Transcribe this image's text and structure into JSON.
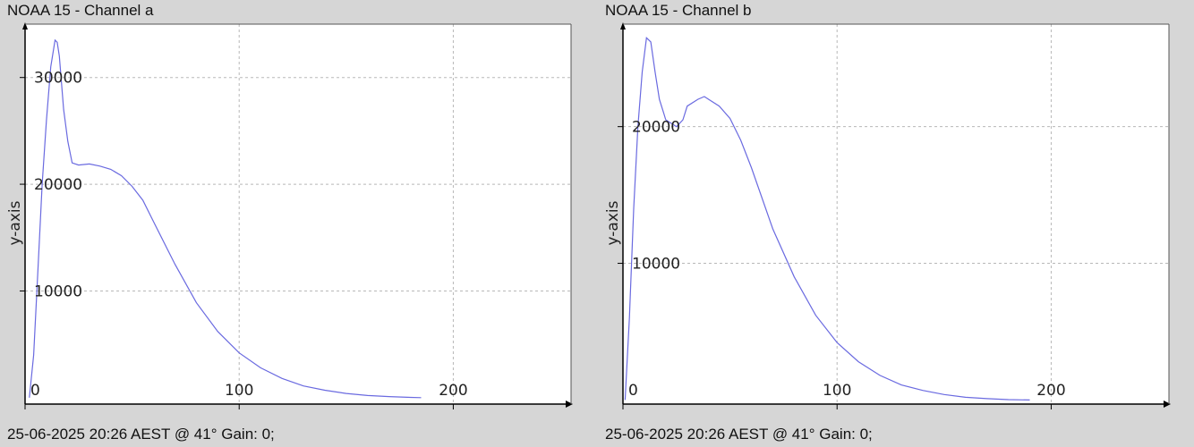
{
  "charts": [
    {
      "title": "NOAA 15 - Channel a",
      "footer": "25-06-2025 20:26 AEST @ 41° Gain: 0;"
    },
    {
      "title": "NOAA 15 - Channel b",
      "footer": "25-06-2025 20:26 AEST @ 41° Gain: 0;"
    }
  ],
  "colors": {
    "background": "#d6d6d6",
    "plot_area": "#ffffff",
    "line": "#6a6ae0",
    "grid": "#b8b8b8",
    "axis": "#000000"
  },
  "chart_data": [
    {
      "type": "line",
      "title": "NOAA 15 - Channel a",
      "xlabel": "",
      "ylabel": "y-axis",
      "xlim": [
        0,
        255
      ],
      "ylim": [
        -600,
        35000
      ],
      "x_ticks": [
        0,
        100,
        200
      ],
      "y_ticks": [
        10000,
        20000,
        30000
      ],
      "grid": true,
      "series": [
        {
          "x": [
            2,
            4,
            6,
            8,
            10,
            12,
            14,
            15,
            16,
            18,
            20,
            22,
            25,
            30,
            35,
            40,
            45,
            50,
            55,
            60,
            70,
            80,
            90,
            100,
            110,
            120,
            130,
            140,
            150,
            160,
            170,
            180,
            185
          ],
          "y": [
            0,
            4000,
            12000,
            20000,
            26000,
            31000,
            33500,
            33300,
            32000,
            27000,
            24000,
            22000,
            21800,
            21900,
            21700,
            21400,
            20800,
            19800,
            18500,
            16500,
            12500,
            8900,
            6200,
            4200,
            2800,
            1800,
            1100,
            700,
            400,
            200,
            100,
            30,
            0
          ]
        }
      ]
    },
    {
      "type": "line",
      "title": "NOAA 15 - Channel b",
      "xlabel": "",
      "ylabel": "y-axis",
      "xlim": [
        0,
        255
      ],
      "ylim": [
        -300,
        27500
      ],
      "x_ticks": [
        0,
        100,
        200
      ],
      "y_ticks": [
        10000,
        20000
      ],
      "grid": true,
      "series": [
        {
          "x": [
            1,
            3,
            5,
            7,
            9,
            11,
            13,
            15,
            17,
            19,
            20,
            25,
            28,
            30,
            35,
            38,
            40,
            45,
            50,
            55,
            60,
            70,
            80,
            90,
            100,
            110,
            120,
            130,
            140,
            150,
            160,
            170,
            180,
            190
          ],
          "y": [
            0,
            6000,
            14000,
            20000,
            24000,
            26500,
            26200,
            24000,
            22000,
            21000,
            20500,
            20000,
            20500,
            21500,
            22000,
            22200,
            22000,
            21500,
            20600,
            19000,
            17000,
            12500,
            9000,
            6200,
            4200,
            2800,
            1800,
            1100,
            700,
            400,
            200,
            100,
            30,
            0
          ]
        }
      ]
    }
  ]
}
